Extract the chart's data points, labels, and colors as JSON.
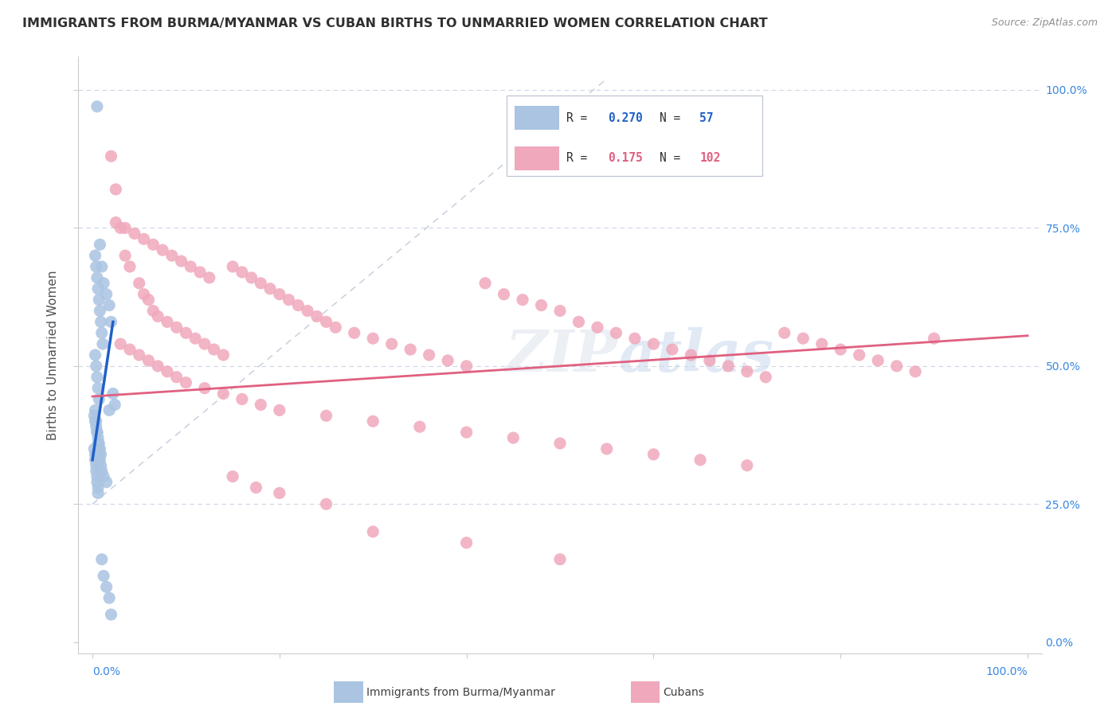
{
  "title": "IMMIGRANTS FROM BURMA/MYANMAR VS CUBAN BIRTHS TO UNMARRIED WOMEN CORRELATION CHART",
  "source": "Source: ZipAtlas.com",
  "ylabel": "Births to Unmarried Women",
  "blue_R": 0.27,
  "blue_N": 57,
  "pink_R": 0.175,
  "pink_N": 102,
  "blue_color": "#aac4e2",
  "pink_color": "#f0a8bc",
  "blue_line_color": "#2060c8",
  "pink_line_color": "#e06080",
  "dashed_line_color": "#c0c8d8",
  "background_color": "#ffffff",
  "grid_color": "#d0d4e4",
  "title_color": "#303030",
  "source_color": "#909090",
  "right_axis_color": "#3888e0",
  "bottom_axis_color": "#3888e0",
  "legend_blue_label": "Immigrants from Burma/Myanmar",
  "legend_pink_label": "Cubans",
  "xlim": [
    0.0,
    1.0
  ],
  "ylim": [
    0.0,
    1.0
  ],
  "right_ytick_labels": [
    "0.0%",
    "25.0%",
    "50.0%",
    "75.0%",
    "100.0%"
  ],
  "right_ytick_pos": [
    0.0,
    0.25,
    0.5,
    0.75,
    1.0
  ],
  "blue_scatter_x": [
    0.005,
    0.008,
    0.01,
    0.012,
    0.015,
    0.018,
    0.02,
    0.022,
    0.024,
    0.003,
    0.004,
    0.005,
    0.006,
    0.007,
    0.008,
    0.009,
    0.01,
    0.011,
    0.003,
    0.004,
    0.005,
    0.006,
    0.007,
    0.003,
    0.004,
    0.005,
    0.006,
    0.002,
    0.003,
    0.003,
    0.004,
    0.004,
    0.005,
    0.005,
    0.006,
    0.006,
    0.007,
    0.007,
    0.008,
    0.009,
    0.01,
    0.012,
    0.015,
    0.018,
    0.002,
    0.003,
    0.004,
    0.005,
    0.006,
    0.007,
    0.008,
    0.009,
    0.01,
    0.012,
    0.015,
    0.018,
    0.02
  ],
  "blue_scatter_y": [
    0.97,
    0.72,
    0.68,
    0.65,
    0.63,
    0.61,
    0.58,
    0.45,
    0.43,
    0.7,
    0.68,
    0.66,
    0.64,
    0.62,
    0.6,
    0.58,
    0.56,
    0.54,
    0.52,
    0.5,
    0.48,
    0.46,
    0.44,
    0.42,
    0.4,
    0.38,
    0.36,
    0.35,
    0.34,
    0.33,
    0.32,
    0.31,
    0.3,
    0.29,
    0.28,
    0.27,
    0.35,
    0.34,
    0.33,
    0.32,
    0.31,
    0.3,
    0.29,
    0.42,
    0.41,
    0.4,
    0.39,
    0.38,
    0.37,
    0.36,
    0.35,
    0.34,
    0.15,
    0.12,
    0.1,
    0.08,
    0.05
  ],
  "pink_scatter_x": [
    0.02,
    0.025,
    0.03,
    0.035,
    0.04,
    0.05,
    0.055,
    0.06,
    0.065,
    0.07,
    0.08,
    0.09,
    0.1,
    0.11,
    0.12,
    0.13,
    0.14,
    0.15,
    0.16,
    0.17,
    0.18,
    0.19,
    0.2,
    0.21,
    0.22,
    0.23,
    0.24,
    0.25,
    0.26,
    0.28,
    0.3,
    0.32,
    0.34,
    0.36,
    0.38,
    0.4,
    0.42,
    0.44,
    0.46,
    0.48,
    0.5,
    0.52,
    0.54,
    0.56,
    0.58,
    0.6,
    0.62,
    0.64,
    0.66,
    0.68,
    0.7,
    0.72,
    0.74,
    0.76,
    0.78,
    0.8,
    0.82,
    0.84,
    0.86,
    0.88,
    0.9,
    0.03,
    0.04,
    0.05,
    0.06,
    0.07,
    0.08,
    0.09,
    0.1,
    0.12,
    0.14,
    0.16,
    0.18,
    0.2,
    0.25,
    0.3,
    0.35,
    0.4,
    0.45,
    0.5,
    0.55,
    0.6,
    0.65,
    0.7,
    0.025,
    0.035,
    0.045,
    0.055,
    0.065,
    0.075,
    0.085,
    0.095,
    0.105,
    0.115,
    0.125,
    0.15,
    0.175,
    0.2,
    0.25,
    0.3,
    0.4,
    0.5
  ],
  "pink_scatter_y": [
    0.88,
    0.82,
    0.75,
    0.7,
    0.68,
    0.65,
    0.63,
    0.62,
    0.6,
    0.59,
    0.58,
    0.57,
    0.56,
    0.55,
    0.54,
    0.53,
    0.52,
    0.68,
    0.67,
    0.66,
    0.65,
    0.64,
    0.63,
    0.62,
    0.61,
    0.6,
    0.59,
    0.58,
    0.57,
    0.56,
    0.55,
    0.54,
    0.53,
    0.52,
    0.51,
    0.5,
    0.65,
    0.63,
    0.62,
    0.61,
    0.6,
    0.58,
    0.57,
    0.56,
    0.55,
    0.54,
    0.53,
    0.52,
    0.51,
    0.5,
    0.49,
    0.48,
    0.56,
    0.55,
    0.54,
    0.53,
    0.52,
    0.51,
    0.5,
    0.49,
    0.55,
    0.54,
    0.53,
    0.52,
    0.51,
    0.5,
    0.49,
    0.48,
    0.47,
    0.46,
    0.45,
    0.44,
    0.43,
    0.42,
    0.41,
    0.4,
    0.39,
    0.38,
    0.37,
    0.36,
    0.35,
    0.34,
    0.33,
    0.32,
    0.76,
    0.75,
    0.74,
    0.73,
    0.72,
    0.71,
    0.7,
    0.69,
    0.68,
    0.67,
    0.66,
    0.3,
    0.28,
    0.27,
    0.25,
    0.2,
    0.18,
    0.15
  ],
  "blue_regline_x": [
    0.0,
    0.022
  ],
  "blue_regline_y": [
    0.33,
    0.58
  ],
  "pink_regline_x": [
    0.0,
    1.0
  ],
  "pink_regline_y": [
    0.445,
    0.555
  ]
}
